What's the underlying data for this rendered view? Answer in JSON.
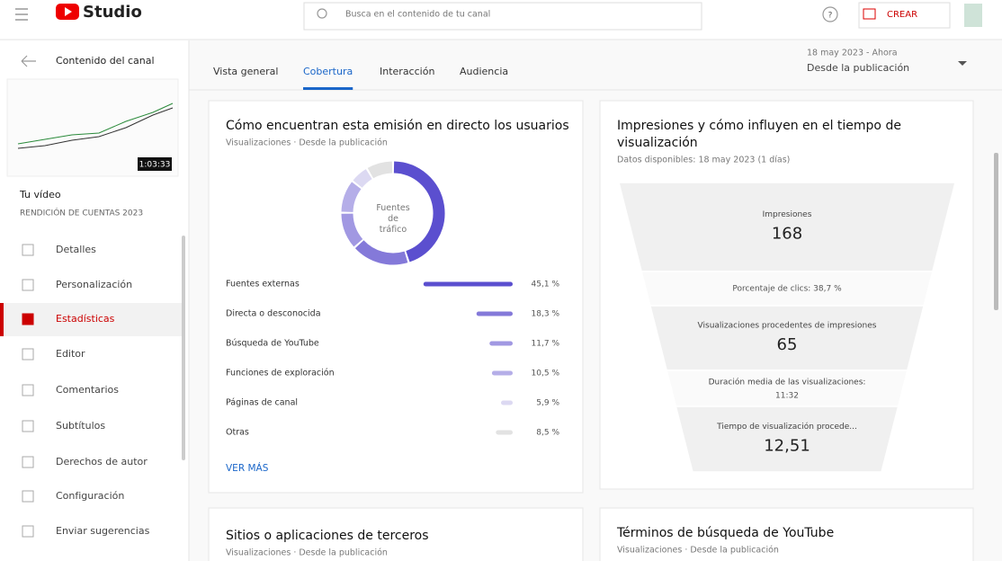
{
  "header": {
    "logo": "Studio",
    "search_placeholder": "Busca en el contenido de tu canal",
    "help": "?",
    "create": "CREAR"
  },
  "sidebar": {
    "title": "Contenido del canal",
    "thumbnail_time": "1:03:33",
    "video_label": "Tu vídeo",
    "video_title": "RENDICIÓN DE CUENTAS 2023",
    "items": [
      "Detalles",
      "Personalización",
      "Estadísticas",
      "Editor",
      "Comentarios",
      "Subtítulos",
      "Derechos de autor"
    ],
    "bottom_items": [
      "Configuración",
      "Enviar sugerencias"
    ]
  },
  "tabs": [
    "Vista general",
    "Cobertura",
    "Interacción",
    "Audiencia"
  ],
  "date_range": {
    "period": "18 may 2023 - Ahora",
    "label": "Desde la publicación"
  },
  "traffic_card": {
    "title": "Cómo encuentran esta emisión en directo los usuarios",
    "subtitle": "Visualizaciones · Desde la publicación",
    "donut_label": "Fuentes de tráfico",
    "more": "VER MÁS"
  },
  "chart_data": {
    "type": "bar",
    "categories": [
      "Fuentes externas",
      "Directa o desconocida",
      "Búsqueda de YouTube",
      "Funciones de exploración",
      "Páginas de canal",
      "Otras"
    ],
    "values": [
      45.1,
      18.3,
      11.7,
      10.5,
      5.9,
      8.5
    ],
    "value_labels": [
      "45,1 %",
      "18,3 %",
      "11,7 %",
      "10,5 %",
      "5,9 %",
      "8,5 %"
    ],
    "colors": [
      "#5b4fcf",
      "#8479d9",
      "#a198e2",
      "#b5aee8",
      "#dcd9f2",
      "#e2e2e2"
    ]
  },
  "funnel_card": {
    "title": "Impresiones y cómo influyen en el tiempo de visualización",
    "subtitle": "Datos disponibles: 18 may 2023 (1 días)",
    "stages": [
      {
        "label": "Impresiones",
        "value": "168"
      },
      {
        "label": "Porcentaje de clics: 38,7 %"
      },
      {
        "label": "Visualizaciones procedentes de impresiones",
        "value": "65"
      },
      {
        "label": "Duración media de las visualizaciones:",
        "value": "11:32"
      },
      {
        "label": "Tiempo de visualización procede...",
        "value": "12,51"
      }
    ]
  },
  "bottom_cards": [
    {
      "title": "Sitios o aplicaciones de terceros",
      "subtitle": "Visualizaciones · Desde la publicación"
    },
    {
      "title": "Términos de búsqueda de YouTube",
      "subtitle": "Visualizaciones · Desde la publicación"
    }
  ]
}
